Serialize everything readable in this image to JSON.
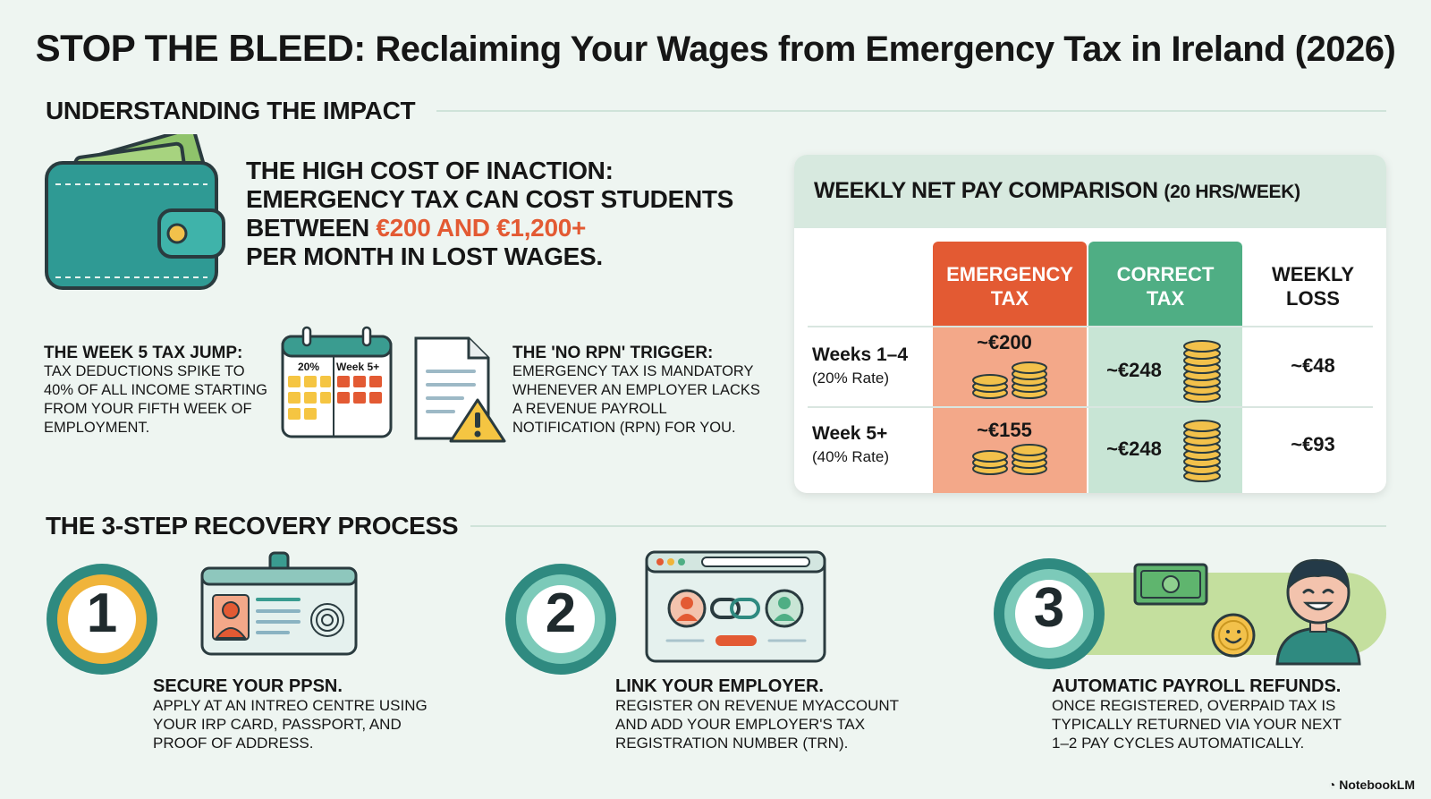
{
  "title": {
    "bold": "STOP THE BLEED:",
    "rest": "Reclaiming Your Wages from Emergency Tax in Ireland (2026)"
  },
  "impact": {
    "heading": "UNDERSTANDING THE IMPACT",
    "headline_line1": "THE HIGH COST OF INACTION:",
    "headline_line2": "EMERGENCY TAX CAN COST STUDENTS",
    "headline_line3_pre": "BETWEEN ",
    "headline_highlight": "€200 AND €1,200+",
    "headline_line4": "PER MONTH IN LOST WAGES.",
    "week5": {
      "title": "THE WEEK 5 TAX JUMP:",
      "body": "Tax deductions spike to 40% of all income starting from your fifth week of employment."
    },
    "calendar": {
      "left_label": "20%",
      "right_label": "Week 5+"
    },
    "norpn": {
      "title": "THE 'NO RPN' TRIGGER:",
      "body": "Emergency tax is mandatory whenever an employer lacks a Revenue Payroll Notification (RPN) for you."
    }
  },
  "comparison": {
    "title": "WEEKLY NET PAY COMPARISON",
    "title_paren": "(20 HRS/WEEK)",
    "columns": {
      "emergency_l1": "EMERGENCY",
      "emergency_l2": "TAX",
      "correct_l1": "CORRECT",
      "correct_l2": "TAX",
      "loss_l1": "WEEKLY",
      "loss_l2": "LOSS"
    },
    "rows": [
      {
        "label": "Weeks 1–4",
        "sub": "(20% Rate)",
        "emergency": "~€200",
        "correct": "~€248",
        "loss": "~€48"
      },
      {
        "label": "Week 5+",
        "sub": "(40% Rate)",
        "emergency": "~€155",
        "correct": "~€248",
        "loss": "~€93"
      }
    ],
    "colors": {
      "emergency_head": "#e35a33",
      "emergency_cell": "#f3a889",
      "correct_head": "#4fae84",
      "correct_cell": "#c8e5d5"
    }
  },
  "recovery": {
    "heading": "THE 3-STEP RECOVERY PROCESS",
    "steps": [
      {
        "number": "1",
        "title": "SECURE YOUR PPSN.",
        "body": "Apply at an Intreo Centre using your IRP card, passport, and proof of address."
      },
      {
        "number": "2",
        "title": "LINK YOUR EMPLOYER.",
        "body": "Register on Revenue myAccount and add your employer's Tax Registration Number (TRN)."
      },
      {
        "number": "3",
        "title": "AUTOMATIC PAYROLL REFUNDS.",
        "body": "Once registered, overpaid tax is typically returned via your next 1–2 pay cycles automatically."
      }
    ]
  },
  "brand": "NotebookLM"
}
